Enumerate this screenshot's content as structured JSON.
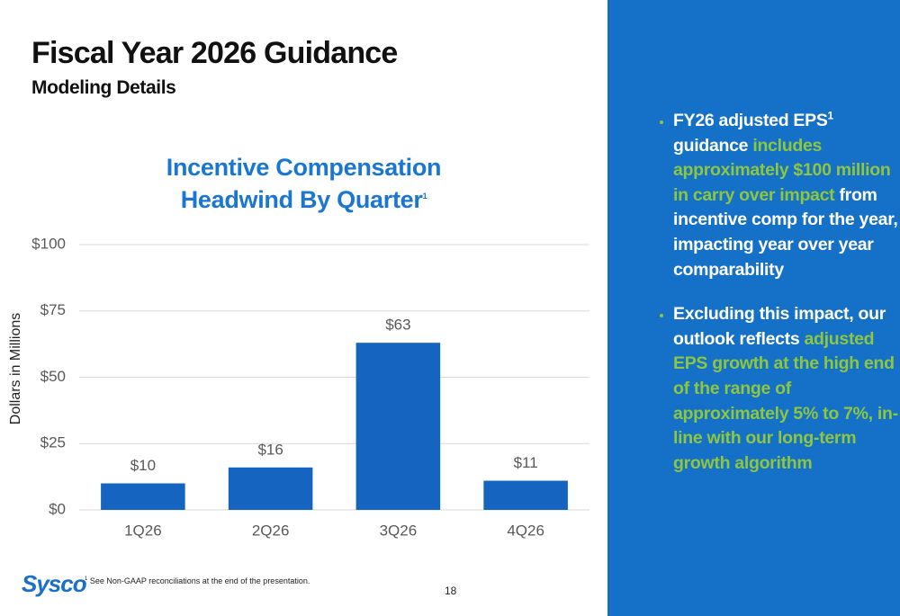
{
  "header": {
    "title": "Fiscal Year 2026 Guidance",
    "subtitle": "Modeling Details"
  },
  "chart_data": {
    "type": "bar",
    "title": "Incentive Compensation Headwind By Quarter",
    "title_superscript": "1",
    "y_label": "Dollars in Millions",
    "categories": [
      "1Q26",
      "2Q26",
      "3Q26",
      "4Q26"
    ],
    "values": [
      10,
      16,
      63,
      11
    ],
    "value_labels": [
      "$10",
      "$16",
      "$63",
      "$11"
    ],
    "color": "#1565c0",
    "ylim": [
      0,
      100
    ],
    "yticks": [
      {
        "value": 0,
        "label": "$0"
      },
      {
        "value": 25,
        "label": "$25"
      },
      {
        "value": 50,
        "label": "$50"
      },
      {
        "value": 75,
        "label": "$75"
      },
      {
        "value": 100,
        "label": "$100"
      }
    ],
    "grid": true
  },
  "sidebar": {
    "bullets": [
      {
        "segments": [
          {
            "text": "FY26 adjusted EPS"
          },
          {
            "text": "1",
            "sup": true
          },
          {
            "text": " guidance "
          },
          {
            "text": "includes approximately $100 million in carry over impact",
            "highlight": true
          },
          {
            "text": " from incentive comp for the year, impacting year over year comparability"
          }
        ]
      },
      {
        "segments": [
          {
            "text": "Excluding this impact, our outlook reflects "
          },
          {
            "text": "adjusted EPS growth at the high end of the range of approximately 5% to 7%, in-line with our long-term growth algorithm",
            "highlight": true
          }
        ]
      }
    ]
  },
  "footnote": {
    "marker": "1",
    "text": "See Non-GAAP reconciliations at the end of the presentation."
  },
  "logo": "Sysco",
  "page_number": "18"
}
